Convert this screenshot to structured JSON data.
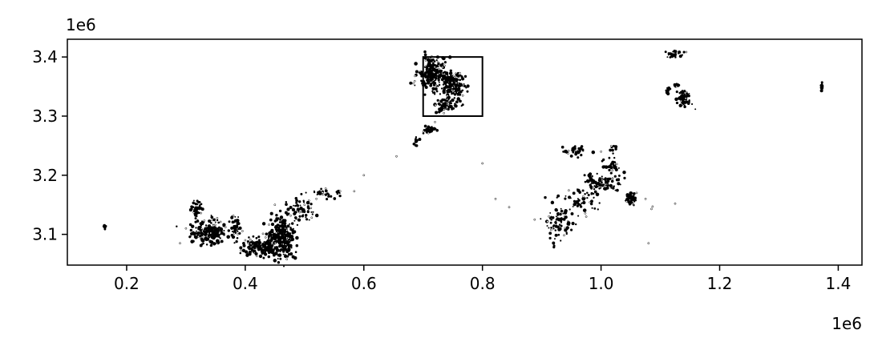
{
  "chart_data": {
    "type": "scatter",
    "title": "",
    "xlabel": "",
    "ylabel": "",
    "x_offset_label": "1e6",
    "y_offset_label": "1e6",
    "xlim": [
      100000,
      1440000
    ],
    "ylim": [
      3048000,
      3430000
    ],
    "x_ticks": [
      200000,
      400000,
      600000,
      800000,
      1000000,
      1200000,
      1400000
    ],
    "x_tick_labels": [
      "0.2",
      "0.4",
      "0.6",
      "0.8",
      "1.0",
      "1.2",
      "1.4"
    ],
    "y_ticks": [
      3100000,
      3200000,
      3300000,
      3400000
    ],
    "y_tick_labels": [
      "3.1",
      "3.2",
      "3.3",
      "3.4"
    ],
    "grid": false,
    "marker_color": "#000000",
    "highlight_box": {
      "x0": 700000,
      "x1": 800000,
      "y0": 3300000,
      "y1": 3400000
    },
    "clusters": [
      {
        "cx": 163000,
        "cy": 3113000,
        "sx": 1500,
        "sy": 2000,
        "n": 8
      },
      {
        "cx": 318000,
        "cy": 3142000,
        "sx": 5000,
        "sy": 8000,
        "n": 45
      },
      {
        "cx": 340000,
        "cy": 3103000,
        "sx": 16000,
        "sy": 9000,
        "n": 200
      },
      {
        "cx": 383000,
        "cy": 3112000,
        "sx": 4000,
        "sy": 11000,
        "n": 40
      },
      {
        "cx": 430000,
        "cy": 3077000,
        "sx": 18000,
        "sy": 7000,
        "n": 160
      },
      {
        "cx": 462000,
        "cy": 3097000,
        "sx": 11000,
        "sy": 17000,
        "n": 260
      },
      {
        "cx": 493000,
        "cy": 3142000,
        "sx": 12000,
        "sy": 10000,
        "n": 60
      },
      {
        "cx": 535000,
        "cy": 3170000,
        "sx": 15000,
        "sy": 4000,
        "n": 30
      },
      {
        "cx": 710000,
        "cy": 3278000,
        "sx": 5000,
        "sy": 3000,
        "n": 45
      },
      {
        "cx": 715000,
        "cy": 3372000,
        "sx": 12000,
        "sy": 14000,
        "n": 220
      },
      {
        "cx": 750000,
        "cy": 3355000,
        "sx": 9000,
        "sy": 10000,
        "n": 180
      },
      {
        "cx": 740000,
        "cy": 3320000,
        "sx": 15000,
        "sy": 9000,
        "n": 60
      },
      {
        "cx": 688000,
        "cy": 3258000,
        "sx": 4000,
        "sy": 5000,
        "n": 10
      },
      {
        "cx": 930000,
        "cy": 3123000,
        "sx": 12000,
        "sy": 16000,
        "n": 90
      },
      {
        "cx": 970000,
        "cy": 3158000,
        "sx": 14000,
        "sy": 10000,
        "n": 45
      },
      {
        "cx": 953000,
        "cy": 3241000,
        "sx": 12000,
        "sy": 5000,
        "n": 35
      },
      {
        "cx": 1000000,
        "cy": 3188000,
        "sx": 16000,
        "sy": 8000,
        "n": 90
      },
      {
        "cx": 1020000,
        "cy": 3215000,
        "sx": 8000,
        "sy": 6000,
        "n": 25
      },
      {
        "cx": 1050000,
        "cy": 3160000,
        "sx": 4000,
        "sy": 6000,
        "n": 55
      },
      {
        "cx": 1020000,
        "cy": 3246000,
        "sx": 3000,
        "sy": 3000,
        "n": 10
      },
      {
        "cx": 1125000,
        "cy": 3405000,
        "sx": 8000,
        "sy": 3000,
        "n": 30
      },
      {
        "cx": 1140000,
        "cy": 3330000,
        "sx": 6000,
        "sy": 8000,
        "n": 70
      },
      {
        "cx": 1113000,
        "cy": 3343000,
        "sx": 2000,
        "sy": 2500,
        "n": 12
      },
      {
        "cx": 1128000,
        "cy": 3352000,
        "sx": 2500,
        "sy": 2000,
        "n": 8
      },
      {
        "cx": 1372000,
        "cy": 3350000,
        "sx": 800,
        "sy": 4000,
        "n": 14
      }
    ],
    "scattered_points": [
      [
        290000,
        3085000
      ],
      [
        560000,
        3173000
      ],
      [
        655000,
        3232000
      ],
      [
        800000,
        3220000
      ],
      [
        822000,
        3160000
      ],
      [
        845000,
        3146000
      ],
      [
        888000,
        3125000
      ],
      [
        1080000,
        3085000
      ],
      [
        1087000,
        3147000
      ],
      [
        1125000,
        3152000
      ],
      [
        975000,
        3130000
      ],
      [
        450000,
        3150000
      ],
      [
        500000,
        3150000
      ],
      [
        405000,
        3085000
      ],
      [
        300000,
        3110000
      ],
      [
        400000,
        3090000
      ],
      [
        1085000,
        3143000
      ],
      [
        1075000,
        3160000
      ],
      [
        735000,
        3305000
      ],
      [
        720000,
        3290000
      ],
      [
        520000,
        3160000
      ],
      [
        1060000,
        3170000
      ],
      [
        1000000,
        3240000
      ],
      [
        600000,
        3200000
      ]
    ]
  }
}
